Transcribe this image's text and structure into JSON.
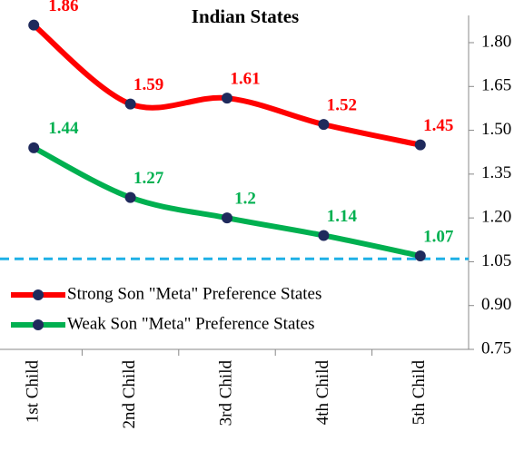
{
  "chart_data": {
    "type": "line",
    "title": "Indian States",
    "categories": [
      "1st Child",
      "2nd Child",
      "3rd Child",
      "4th Child",
      "5th Child"
    ],
    "series": [
      {
        "name": "Strong Son \"Meta\" Preference States",
        "color": "#ff0000",
        "values": [
          1.86,
          1.59,
          1.61,
          1.52,
          1.45
        ]
      },
      {
        "name": "Weak Son \"Meta\" Preference States",
        "color": "#00b050",
        "values": [
          1.44,
          1.27,
          1.2,
          1.14,
          1.07
        ]
      }
    ],
    "marker_color": "#1f2a5c",
    "reference_line": {
      "value": 1.06,
      "color": "#1fb0e6"
    },
    "ylim": [
      0.75,
      1.8
    ],
    "yticks": [
      {
        "value": 0.75,
        "label": "0.75"
      },
      {
        "value": 0.9,
        "label": "0.90"
      },
      {
        "value": 1.05,
        "label": "1.05"
      },
      {
        "value": 1.2,
        "label": "1.20"
      },
      {
        "value": 1.35,
        "label": "1.35"
      },
      {
        "value": 1.5,
        "label": "1.50"
      },
      {
        "value": 1.65,
        "label": "1.65"
      },
      {
        "value": 1.8,
        "label": "1.80"
      }
    ],
    "y_axis_side": "right",
    "legend": "lower left"
  }
}
